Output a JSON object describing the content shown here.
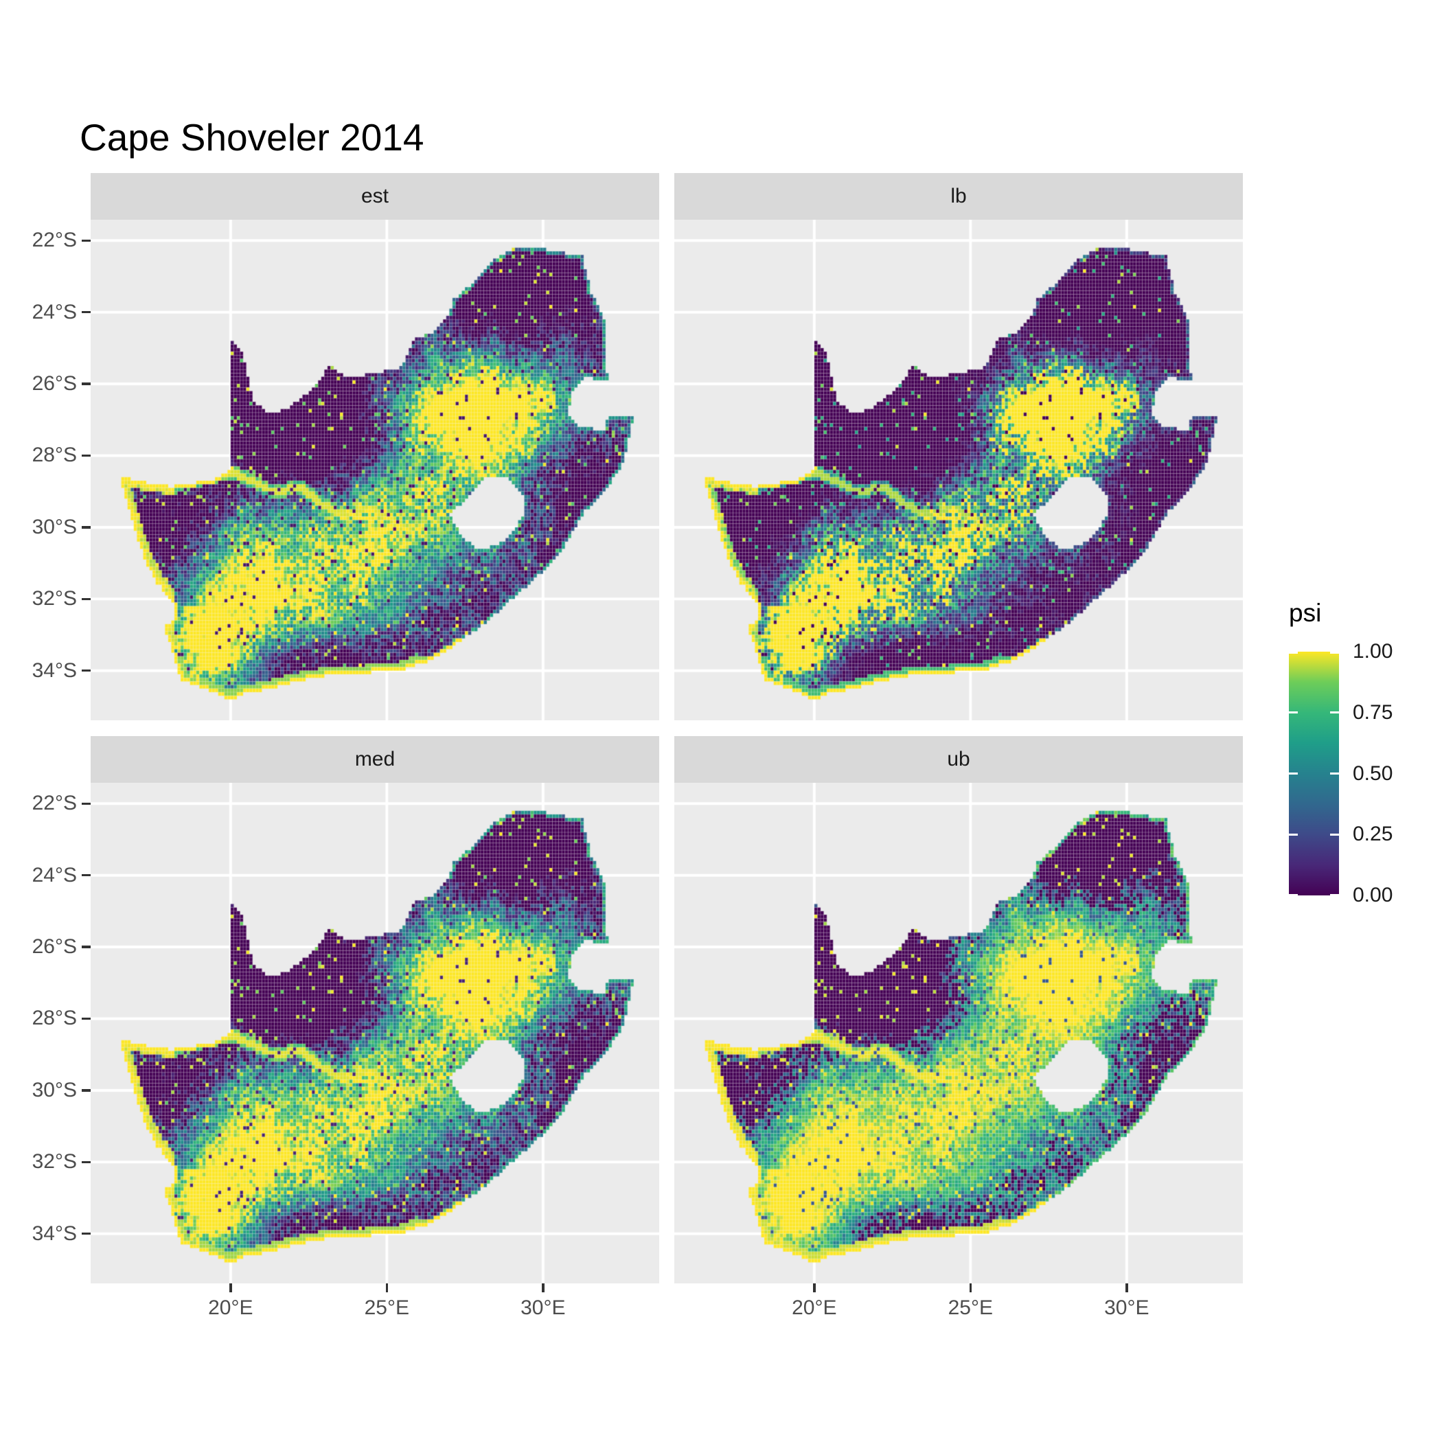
{
  "title": "Cape Shoveler 2014",
  "theme": {
    "background": "#ffffff",
    "panel_bg": "#ebebeb",
    "strip_bg": "#d9d9d9",
    "grid_color": "#ffffff",
    "axis_text_color": "#4d4d4d",
    "tick_mark_color": "#333333",
    "strip_text_color": "#1a1a1a",
    "title_color": "#000000"
  },
  "axes": {
    "x": {
      "tick_labels": [
        "20°E",
        "25°E",
        "30°E"
      ],
      "tick_values": [
        20,
        25,
        30
      ]
    },
    "y": {
      "tick_labels": [
        "22°S",
        "24°S",
        "26°S",
        "28°S",
        "30°S",
        "32°S",
        "34°S"
      ],
      "tick_values": [
        -22,
        -24,
        -26,
        -28,
        -30,
        -32,
        -34
      ]
    }
  },
  "legend": {
    "title": "psi",
    "tick_labels": [
      "1.00",
      "0.75",
      "0.50",
      "0.25",
      "0.00"
    ],
    "tick_values": [
      1.0,
      0.75,
      0.5,
      0.25,
      0.0
    ]
  },
  "chart_data": {
    "type": "heatmap",
    "title": "Cape Shoveler 2014",
    "variable": "psi",
    "value_range": [
      0,
      1
    ],
    "facets": [
      "est",
      "lb",
      "med",
      "ub"
    ],
    "facet_gamma": {
      "est": 1.0,
      "lb": 2.4,
      "med": 0.8,
      "ub": 0.42
    },
    "xlabel_ticks": [
      20,
      25,
      30
    ],
    "ylabel_ticks": [
      -22,
      -24,
      -26,
      -28,
      -30,
      -32,
      -34
    ],
    "extent": {
      "lon": [
        15.52,
        33.9
      ],
      "lat": [
        -35.4,
        -21.42
      ]
    },
    "cell_size_deg": 0.1,
    "colormap": [
      [
        0.0,
        "#440154"
      ],
      [
        0.125,
        "#482878"
      ],
      [
        0.25,
        "#3e4a89"
      ],
      [
        0.375,
        "#31688e"
      ],
      [
        0.5,
        "#26828e"
      ],
      [
        0.625,
        "#1f9e89"
      ],
      [
        0.75,
        "#35b779"
      ],
      [
        0.875,
        "#6dcd59"
      ],
      [
        1.0,
        "#fde725"
      ]
    ],
    "south_africa_outline": [
      [
        16.45,
        -28.58
      ],
      [
        17.35,
        -28.75
      ],
      [
        18.1,
        -28.87
      ],
      [
        18.75,
        -28.77
      ],
      [
        19.4,
        -28.7
      ],
      [
        19.98,
        -28.42
      ],
      [
        19.98,
        -24.77
      ],
      [
        20.35,
        -25.05
      ],
      [
        20.55,
        -25.75
      ],
      [
        20.7,
        -26.45
      ],
      [
        21.3,
        -26.85
      ],
      [
        21.9,
        -26.65
      ],
      [
        22.55,
        -26.2
      ],
      [
        22.9,
        -25.85
      ],
      [
        23.2,
        -25.45
      ],
      [
        23.7,
        -25.85
      ],
      [
        24.35,
        -25.75
      ],
      [
        24.9,
        -25.65
      ],
      [
        25.45,
        -25.55
      ],
      [
        25.9,
        -24.72
      ],
      [
        26.45,
        -24.6
      ],
      [
        26.9,
        -24.2
      ],
      [
        27.15,
        -23.65
      ],
      [
        27.75,
        -23.2
      ],
      [
        28.35,
        -22.6
      ],
      [
        29.05,
        -22.2
      ],
      [
        29.7,
        -22.15
      ],
      [
        30.4,
        -22.32
      ],
      [
        31.25,
        -22.4
      ],
      [
        31.55,
        -23.45
      ],
      [
        31.95,
        -24.2
      ],
      [
        32.02,
        -25.1
      ],
      [
        32.06,
        -25.95
      ],
      [
        31.35,
        -25.8
      ],
      [
        30.9,
        -26.2
      ],
      [
        30.82,
        -26.85
      ],
      [
        31.2,
        -27.2
      ],
      [
        31.95,
        -27.3
      ],
      [
        32.12,
        -26.86
      ],
      [
        32.9,
        -26.86
      ],
      [
        32.58,
        -28.2
      ],
      [
        32.0,
        -28.95
      ],
      [
        31.35,
        -29.55
      ],
      [
        30.6,
        -30.65
      ],
      [
        29.85,
        -31.35
      ],
      [
        28.95,
        -32.05
      ],
      [
        28.1,
        -32.7
      ],
      [
        27.15,
        -33.3
      ],
      [
        26.3,
        -33.75
      ],
      [
        25.6,
        -33.95
      ],
      [
        25.0,
        -33.95
      ],
      [
        24.2,
        -34.1
      ],
      [
        23.3,
        -34.1
      ],
      [
        22.4,
        -34.25
      ],
      [
        21.5,
        -34.45
      ],
      [
        20.45,
        -34.65
      ],
      [
        20.0,
        -34.82
      ],
      [
        19.45,
        -34.6
      ],
      [
        18.85,
        -34.4
      ],
      [
        18.45,
        -34.3
      ],
      [
        18.3,
        -33.95
      ],
      [
        18.05,
        -33.2
      ],
      [
        17.85,
        -32.8
      ],
      [
        18.25,
        -32.6
      ],
      [
        18.2,
        -32.1
      ],
      [
        17.6,
        -31.5
      ],
      [
        17.25,
        -30.9
      ],
      [
        16.95,
        -30.1
      ],
      [
        16.7,
        -29.3
      ]
    ],
    "lesotho_hole": [
      [
        27.55,
        -29.2
      ],
      [
        28.15,
        -28.6
      ],
      [
        28.85,
        -28.65
      ],
      [
        29.35,
        -29.1
      ],
      [
        29.45,
        -29.55
      ],
      [
        29.15,
        -30.0
      ],
      [
        28.65,
        -30.45
      ],
      [
        28.0,
        -30.65
      ],
      [
        27.45,
        -30.3
      ],
      [
        27.0,
        -29.65
      ]
    ],
    "orange_river": [
      [
        16.6,
        -28.55
      ],
      [
        17.4,
        -28.7
      ],
      [
        18.2,
        -28.85
      ],
      [
        19.1,
        -28.65
      ],
      [
        19.98,
        -28.45
      ],
      [
        20.8,
        -28.75
      ],
      [
        21.4,
        -29.05
      ],
      [
        22.2,
        -28.85
      ],
      [
        22.9,
        -29.35
      ],
      [
        23.6,
        -29.65
      ],
      [
        24.4,
        -29.45
      ],
      [
        25.1,
        -29.75
      ],
      [
        25.7,
        -30.1
      ]
    ],
    "bright_regions": [
      [
        0.85,
        28.0,
        -26.4,
        1.5,
        1.0
      ],
      [
        0.5,
        26.6,
        -26.9,
        1.2,
        0.9
      ],
      [
        0.45,
        29.9,
        -26.6,
        1.0,
        0.9
      ],
      [
        0.6,
        23.0,
        -31.2,
        3.0,
        1.5
      ],
      [
        0.55,
        20.0,
        -32.0,
        1.5,
        1.2
      ],
      [
        0.75,
        19.3,
        -33.5,
        0.9,
        0.8
      ],
      [
        0.5,
        25.3,
        -29.2,
        1.5,
        1.3
      ],
      [
        0.4,
        28.3,
        -28.4,
        1.1,
        0.9
      ]
    ],
    "dark_regions": [
      [
        -0.8,
        29.3,
        -23.2,
        2.4,
        1.5
      ],
      [
        -0.85,
        21.3,
        -26.2,
        2.5,
        1.7
      ],
      [
        -0.6,
        18.0,
        -30.0,
        1.3,
        1.1
      ],
      [
        -0.5,
        23.0,
        -28.0,
        1.7,
        1.0
      ],
      [
        -0.6,
        31.3,
        -29.2,
        1.2,
        1.5
      ],
      [
        -0.6,
        23.5,
        -33.8,
        2.3,
        0.55
      ],
      [
        -0.4,
        27.3,
        -32.2,
        1.5,
        1.1
      ],
      [
        -0.35,
        17.6,
        -31.8,
        0.8,
        1.0
      ]
    ]
  }
}
